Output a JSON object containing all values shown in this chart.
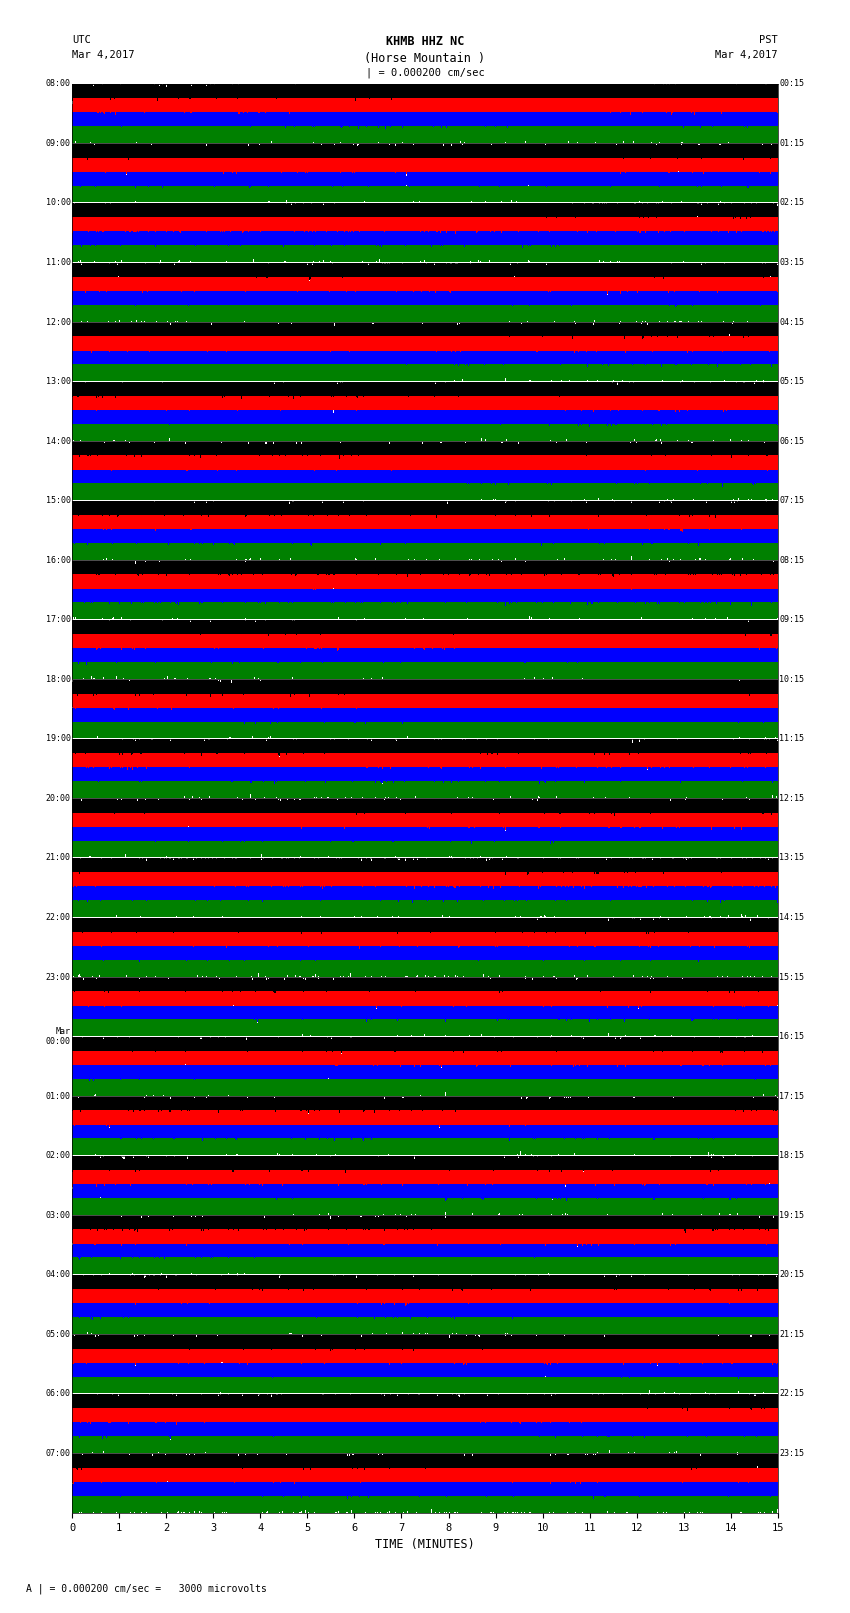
{
  "title_line1": "KHMB HHZ NC",
  "title_line2": "(Horse Mountain )",
  "scale_label": "| = 0.000200 cm/sec",
  "utc_label": "UTC",
  "pst_label": "PST",
  "date_label": "Mar 4,2017",
  "xlabel": "TIME (MINUTES)",
  "scale_note": "A | = 0.000200 cm/sec =   3000 microvolts",
  "left_times": [
    "08:00",
    "09:00",
    "10:00",
    "11:00",
    "12:00",
    "13:00",
    "14:00",
    "15:00",
    "16:00",
    "17:00",
    "18:00",
    "19:00",
    "20:00",
    "21:00",
    "22:00",
    "23:00",
    "Mar\n00:00",
    "01:00",
    "02:00",
    "03:00",
    "04:00",
    "05:00",
    "06:00",
    "07:00"
  ],
  "right_times": [
    "00:15",
    "01:15",
    "02:15",
    "03:15",
    "04:15",
    "05:15",
    "06:15",
    "07:15",
    "08:15",
    "09:15",
    "10:15",
    "11:15",
    "12:15",
    "13:15",
    "14:15",
    "15:15",
    "16:15",
    "17:15",
    "18:15",
    "19:15",
    "20:15",
    "21:15",
    "22:15",
    "23:15"
  ],
  "n_rows": 24,
  "n_traces_per_row": 4,
  "colors": [
    "black",
    "red",
    "blue",
    "green"
  ],
  "x_min": 0,
  "x_max": 15,
  "bg_color": "white",
  "fig_width": 8.5,
  "fig_height": 16.13,
  "dpi": 100
}
